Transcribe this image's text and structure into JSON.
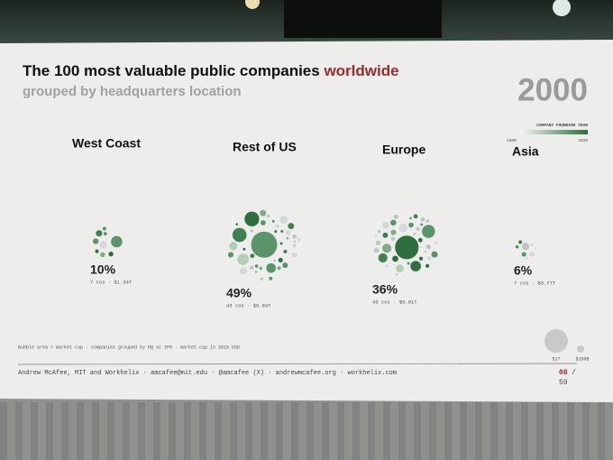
{
  "slide": {
    "title": "The 100 most valuable public companies",
    "title_highlight": "worldwide",
    "subtitle": "grouped by headquarters location",
    "year": "2000",
    "legend": {
      "title": "COMPANY FOUNDING YEAR",
      "min": "1800",
      "max": "2020"
    },
    "groups": [
      {
        "name": "West Coast",
        "share": "10%",
        "detail": "7 cos · $1.34T"
      },
      {
        "name": "Rest of US",
        "share": "49%",
        "detail": "43 cos · $6.84T"
      },
      {
        "name": "Europe",
        "share": "36%",
        "detail": "43 cos · $5.01T"
      },
      {
        "name": "Asia",
        "share": "6%",
        "detail": "7 cos · $0.77T"
      }
    ],
    "note": "Bubble area = market cap · companies grouped by HQ at IPO · market cap in 2015 USD",
    "size_legend": [
      "$1T",
      "$100B"
    ],
    "footer": "Andrew McAfee, MIT and Workhelix · amcafee@mit.edu · @amcafee (X) · andrewmcafee.org · workhelix.com",
    "page": "08",
    "separator": "/",
    "total": "59"
  }
}
